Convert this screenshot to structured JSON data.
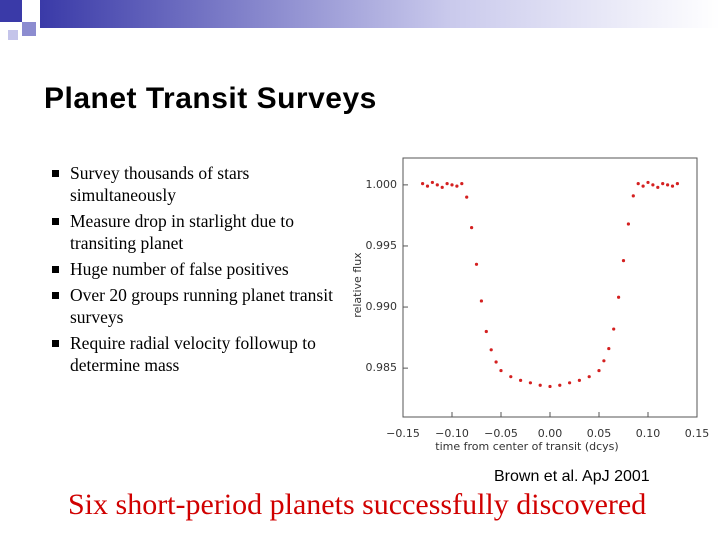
{
  "slide": {
    "title": "Planet Transit Surveys",
    "bullets": [
      "Survey thousands of stars simultaneously",
      "Measure drop in starlight due to transiting planet",
      "Huge number of false positives",
      "Over 20 groups running planet transit surveys",
      "Require radial velocity followup to determine mass"
    ],
    "caption": "Brown et al. ApJ 2001",
    "conclusion": "Six short-period planets successfully discovered"
  },
  "chart_data": {
    "type": "scatter",
    "xlabel": "time from center of transit (dcys)",
    "ylabel": "relative flux",
    "color": "#d42020",
    "xlim": [
      -0.15,
      0.15
    ],
    "ylim": [
      0.981,
      1.0022
    ],
    "xticks": [
      {
        "value": -0.15,
        "label": "−0.15"
      },
      {
        "value": -0.1,
        "label": "−0.10"
      },
      {
        "value": -0.05,
        "label": "−0.05"
      },
      {
        "value": 0,
        "label": "0.00"
      },
      {
        "value": 0.05,
        "label": "0.05"
      },
      {
        "value": 0.1,
        "label": "0.10"
      },
      {
        "value": 0.15,
        "label": "0.15"
      }
    ],
    "yticks": [
      {
        "value": 1.0,
        "label": "1.000"
      },
      {
        "value": 0.995,
        "label": "0.995"
      },
      {
        "value": 0.99,
        "label": "0.990"
      },
      {
        "value": 0.985,
        "label": "0.985"
      }
    ],
    "x": [
      -0.13,
      -0.125,
      -0.12,
      -0.115,
      -0.11,
      -0.105,
      -0.1,
      -0.095,
      -0.09,
      -0.085,
      -0.08,
      -0.075,
      -0.07,
      -0.065,
      -0.06,
      -0.055,
      -0.05,
      -0.04,
      -0.03,
      -0.02,
      -0.01,
      0,
      0.01,
      0.02,
      0.03,
      0.04,
      0.05,
      0.055,
      0.06,
      0.065,
      0.07,
      0.075,
      0.08,
      0.085,
      0.09,
      0.095,
      0.1,
      0.105,
      0.11,
      0.115,
      0.12,
      0.125,
      0.13
    ],
    "values": [
      1.0001,
      0.9999,
      1.0002,
      1.0,
      0.9998,
      1.0001,
      1.0,
      0.9999,
      1.0001,
      0.999,
      0.9965,
      0.9935,
      0.9905,
      0.988,
      0.9865,
      0.9855,
      0.9848,
      0.9843,
      0.984,
      0.9838,
      0.9836,
      0.9835,
      0.9836,
      0.9838,
      0.984,
      0.9843,
      0.9848,
      0.9856,
      0.9866,
      0.9882,
      0.9908,
      0.9938,
      0.9968,
      0.9991,
      1.0001,
      0.9999,
      1.0002,
      1.0,
      0.9998,
      1.0001,
      1.0,
      0.9999,
      1.0001
    ]
  }
}
